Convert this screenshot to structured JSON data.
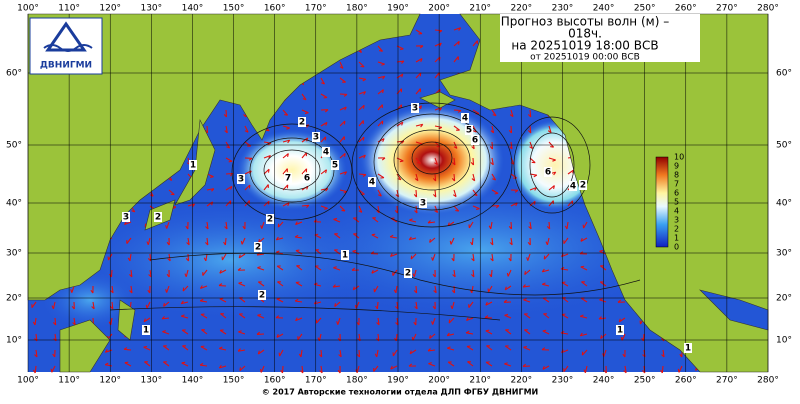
{
  "header": {
    "title": "Прогноз высоты волн (м) –",
    "lead": "018ч.",
    "valid": "на 20251019 18:00 ВСВ",
    "issued": "от 20251019 00:00 ВСВ"
  },
  "logo": "ДВНИГМИ",
  "lon_labels": [
    "100°",
    "110°",
    "120°",
    "130°",
    "140°",
    "150°",
    "160°",
    "170°",
    "180°",
    "190°",
    "200°",
    "210°",
    "220°",
    "230°",
    "240°",
    "250°",
    "260°",
    "270°",
    "280°"
  ],
  "lat_labels": [
    "10°",
    "20°",
    "30°",
    "40°",
    "50°",
    "60°"
  ],
  "colorbar": {
    "labels": [
      "0",
      "1",
      "2",
      "3",
      "4",
      "5",
      "6",
      "7",
      "8",
      "9",
      "10"
    ]
  },
  "contour_labels": [
    2,
    3,
    4,
    5,
    7,
    6,
    3,
    1,
    3,
    2,
    2,
    2,
    1,
    2,
    2,
    1,
    3,
    4,
    5,
    6,
    4,
    3,
    6,
    4,
    2,
    1,
    1
  ],
  "footer": "© 2017 Авторские технологии отдела ДЛП ФГБУ ДВНИГМИ"
}
